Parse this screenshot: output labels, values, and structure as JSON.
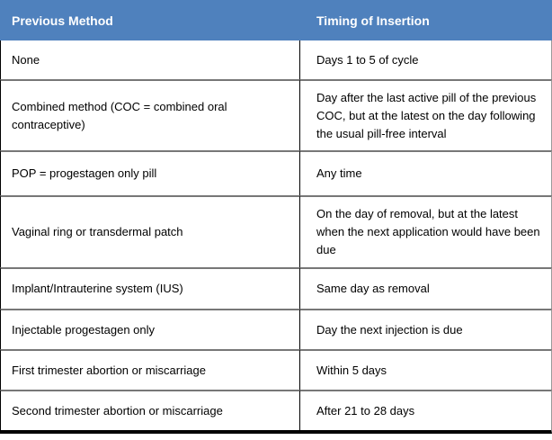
{
  "table": {
    "columns": [
      {
        "label": "Previous Method"
      },
      {
        "label": "Timing of Insertion"
      }
    ],
    "rows": [
      {
        "method": "None",
        "timing": "Days 1 to 5 of cycle"
      },
      {
        "method": "Combined method (COC = combined oral contraceptive)",
        "timing": "Day after the last active pill of the previous COC, but at the latest on the day following the usual pill-free interval"
      },
      {
        "method": "POP = progestagen only pill",
        "timing": "Any time"
      },
      {
        "method": "Vaginal ring or transdermal patch",
        "timing": "On the day of removal, but at the latest when the next application would have been due"
      },
      {
        "method": "Implant/Intrauterine system (IUS)",
        "timing": "Same day as removal"
      },
      {
        "method": "Injectable progestagen only",
        "timing": "Day the next injection is due"
      },
      {
        "method": "First trimester abortion or miscarriage",
        "timing": "Within 5 days"
      },
      {
        "method": "Second trimester abortion or miscarriage",
        "timing": "After 21 to 28 days"
      }
    ],
    "colors": {
      "header_bg": "#4F81BD",
      "header_text": "#FFFFFF",
      "body_text": "#000000",
      "divider": "#777777",
      "column_border": "#000000",
      "right_border": "#9A9A9A",
      "outer_bottom": "#000000"
    }
  }
}
